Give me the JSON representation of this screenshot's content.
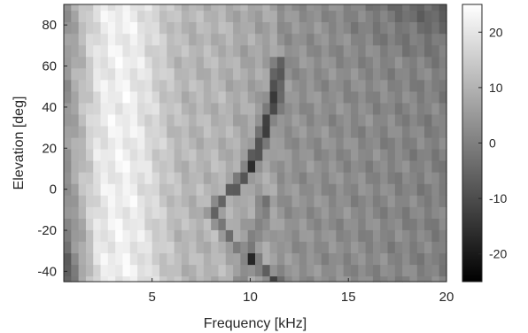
{
  "chart_data": {
    "type": "heatmap",
    "title": "",
    "xlabel": "Frequency [kHz]",
    "ylabel": "Elevation [deg]",
    "xlim": [
      0.5,
      20
    ],
    "ylim": [
      -45,
      90
    ],
    "x_ticks": [
      5,
      10,
      15,
      20
    ],
    "y_ticks": [
      -40,
      -20,
      0,
      20,
      40,
      60,
      80
    ],
    "x_tick_labels": [
      "5",
      "10",
      "15",
      "20"
    ],
    "y_tick_labels": [
      "-40",
      "-20",
      "0",
      "20",
      "40",
      "60",
      "80"
    ],
    "colormap": "gray",
    "clim": [
      -25,
      25
    ],
    "colorbar_ticks": [
      -20,
      -10,
      0,
      10,
      20
    ],
    "colorbar_tick_labels": [
      "-20",
      "-10",
      "0",
      "10",
      "20"
    ],
    "elevations": [
      -45,
      -39.4,
      -33.8,
      -28.1,
      -22.5,
      -16.9,
      -11.3,
      -5.6,
      0,
      5.6,
      11.3,
      16.9,
      22.5,
      28.1,
      33.8,
      39.4,
      45,
      50.6,
      56.3,
      61.9,
      67.5,
      73.1,
      78.8,
      84.4,
      90
    ],
    "frequency_step_khz": 0.375,
    "notch_center_khz": [
      11.2,
      10.8,
      10.1,
      9.4,
      8.9,
      8.4,
      8.1,
      8.5,
      9.1,
      9.6,
      10.0,
      10.3,
      10.5,
      10.7,
      10.9,
      11.1,
      11.2,
      11.3,
      11.4,
      11.5,
      null,
      null,
      null,
      null,
      null
    ],
    "notch_depth_db": [
      -22,
      -14,
      -16,
      -12,
      -14,
      -12,
      -15,
      -18,
      -20,
      -21,
      -22,
      -21,
      -20,
      -19,
      -20,
      -21,
      -20,
      -18,
      -16,
      -12,
      null,
      null,
      null,
      null,
      null
    ]
  }
}
